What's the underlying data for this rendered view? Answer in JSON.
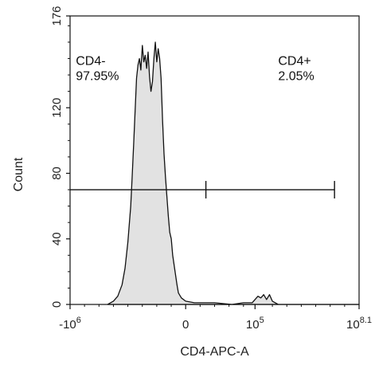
{
  "chart_data": {
    "type": "area",
    "xlabel": "CD4-APC-A",
    "ylabel": "Count",
    "ylim": [
      0,
      176
    ],
    "x_scale": "biexponential",
    "x_ticks": [
      {
        "base": "-10",
        "exp": "6",
        "pos": 0.0
      },
      {
        "base": "0",
        "exp": "",
        "pos": 0.4
      },
      {
        "base": "10",
        "exp": "5",
        "pos": 0.64
      },
      {
        "base": "10",
        "exp": "8.1",
        "pos": 1.0
      }
    ],
    "y_ticks": [
      0,
      40,
      80,
      120,
      176
    ],
    "histogram": {
      "fill": "#e2e2e2",
      "stroke": "#111111",
      "points": [
        [
          0.13,
          0
        ],
        [
          0.15,
          2
        ],
        [
          0.165,
          5
        ],
        [
          0.18,
          12
        ],
        [
          0.19,
          22
        ],
        [
          0.2,
          38
        ],
        [
          0.21,
          60
        ],
        [
          0.215,
          78
        ],
        [
          0.22,
          98
        ],
        [
          0.225,
          118
        ],
        [
          0.23,
          138
        ],
        [
          0.235,
          146
        ],
        [
          0.24,
          150
        ],
        [
          0.245,
          143
        ],
        [
          0.25,
          158
        ],
        [
          0.255,
          148
        ],
        [
          0.26,
          152
        ],
        [
          0.265,
          144
        ],
        [
          0.27,
          154
        ],
        [
          0.275,
          139
        ],
        [
          0.28,
          130
        ],
        [
          0.285,
          136
        ],
        [
          0.29,
          150
        ],
        [
          0.295,
          160
        ],
        [
          0.3,
          148
        ],
        [
          0.305,
          156
        ],
        [
          0.31,
          150
        ],
        [
          0.315,
          138
        ],
        [
          0.32,
          112
        ],
        [
          0.325,
          92
        ],
        [
          0.33,
          78
        ],
        [
          0.335,
          66
        ],
        [
          0.34,
          54
        ],
        [
          0.345,
          44
        ],
        [
          0.35,
          40
        ],
        [
          0.355,
          30
        ],
        [
          0.36,
          24
        ],
        [
          0.365,
          18
        ],
        [
          0.37,
          12
        ],
        [
          0.375,
          7
        ],
        [
          0.385,
          4
        ],
        [
          0.4,
          2
        ],
        [
          0.43,
          1
        ],
        [
          0.5,
          1
        ],
        [
          0.56,
          0
        ],
        [
          0.6,
          1
        ],
        [
          0.63,
          1
        ],
        [
          0.64,
          3
        ],
        [
          0.65,
          5
        ],
        [
          0.66,
          4
        ],
        [
          0.67,
          6
        ],
        [
          0.68,
          3
        ],
        [
          0.69,
          6
        ],
        [
          0.7,
          2
        ],
        [
          0.72,
          0
        ],
        [
          1.0,
          0
        ]
      ]
    },
    "gate": {
      "y": 70,
      "start": 0.0,
      "divider": 0.47,
      "end": 0.915
    },
    "annotations": [
      {
        "lines": [
          "CD4-",
          "97.95%"
        ],
        "x": 0.02,
        "y": 0.83,
        "anchor": "start"
      },
      {
        "lines": [
          "CD4+",
          "2.05%"
        ],
        "x": 0.72,
        "y": 0.83,
        "anchor": "start"
      }
    ]
  }
}
